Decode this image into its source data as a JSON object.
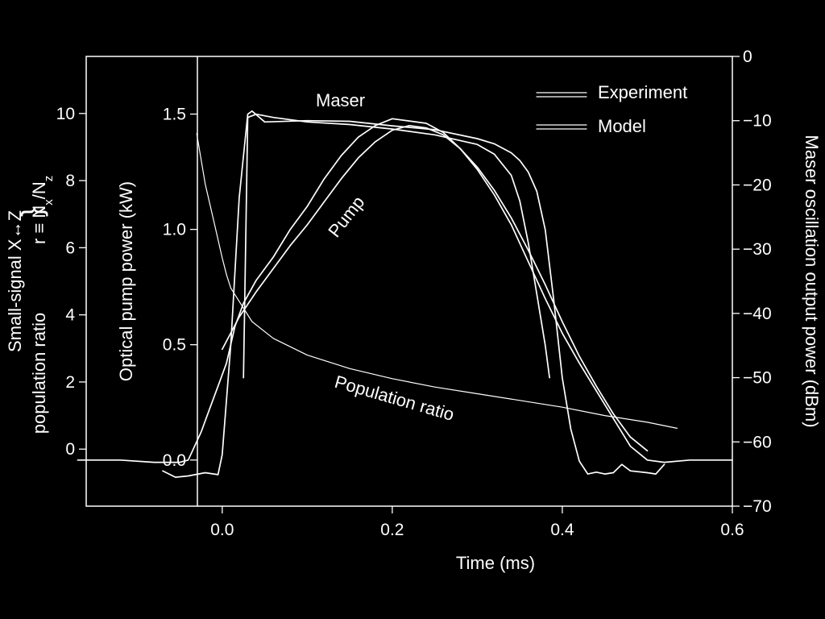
{
  "chart_data": {
    "type": "line",
    "x_axis": {
      "label": "Time (ms)",
      "range": [
        -0.16,
        0.6
      ],
      "ticks": [
        0.0,
        0.2,
        0.4,
        0.6
      ],
      "tick_labels": [
        "0.0",
        "0.2",
        "0.4",
        "0.6"
      ]
    },
    "y_axes": {
      "population_ratio": {
        "label_lines": [
          "Small-signal X↔Z",
          "population ratio"
        ],
        "brace_label": "r ≡ N",
        "brace_sub_x": "x",
        "brace_slash": "/N",
        "brace_sub_z": "z",
        "range": [
          -1.7,
          11.7
        ],
        "ticks": [
          0,
          2,
          4,
          6,
          8,
          10
        ],
        "tick_labels": [
          "0",
          "2",
          "4",
          "6",
          "8",
          "10"
        ]
      },
      "pump_power": {
        "label": "Optical pump power (kW)",
        "range": [
          -0.2,
          1.75
        ],
        "ticks": [
          0.0,
          0.5,
          1.0,
          1.5
        ],
        "tick_labels": [
          "0.0",
          "0.5",
          "1.0",
          "1.5"
        ]
      },
      "maser_power": {
        "label": "Maser oscillation output power (dBm)",
        "range": [
          -70,
          0
        ],
        "ticks": [
          0,
          -10,
          -20,
          -30,
          -40,
          -50,
          -60,
          -70
        ],
        "tick_labels": [
          "0",
          "−10",
          "−20",
          "−30",
          "−40",
          "−50",
          "−60",
          "−70"
        ]
      }
    },
    "legend": {
      "placement": "top-right",
      "entries": [
        "Experiment",
        "Model"
      ]
    },
    "annotations": [
      "Maser",
      "Pump",
      "Population ratio"
    ],
    "series": [
      {
        "name": "Pump",
        "kind": "experiment",
        "axis": "pump_power",
        "x": [
          -0.17,
          -0.12,
          -0.08,
          -0.05,
          -0.04,
          -0.025,
          -0.015,
          -0.005,
          0.005,
          0.015,
          0.025,
          0.04,
          0.06,
          0.08,
          0.1,
          0.12,
          0.14,
          0.16,
          0.18,
          0.2,
          0.22,
          0.24,
          0.26,
          0.28,
          0.3,
          0.32,
          0.34,
          0.36,
          0.38,
          0.4,
          0.42,
          0.44,
          0.46,
          0.48,
          0.5,
          0.52,
          0.55,
          0.58,
          0.6
        ],
        "y": [
          0.0,
          0.0,
          -0.01,
          -0.01,
          0.0,
          0.12,
          0.22,
          0.32,
          0.42,
          0.58,
          0.68,
          0.78,
          0.88,
          1.0,
          1.1,
          1.22,
          1.32,
          1.4,
          1.45,
          1.48,
          1.47,
          1.46,
          1.42,
          1.35,
          1.26,
          1.15,
          1.02,
          0.86,
          0.7,
          0.55,
          0.42,
          0.3,
          0.18,
          0.06,
          0.0,
          -0.01,
          0.0,
          0.0,
          0.0
        ]
      },
      {
        "name": "Pump",
        "kind": "model",
        "axis": "pump_power",
        "x": [
          0.0,
          0.02,
          0.04,
          0.06,
          0.08,
          0.1,
          0.12,
          0.14,
          0.16,
          0.18,
          0.2,
          0.22,
          0.24,
          0.26,
          0.28,
          0.3,
          0.32,
          0.34,
          0.36,
          0.38,
          0.4,
          0.42,
          0.44,
          0.46,
          0.48,
          0.5
        ],
        "y": [
          0.48,
          0.62,
          0.73,
          0.83,
          0.93,
          1.02,
          1.12,
          1.22,
          1.31,
          1.38,
          1.43,
          1.45,
          1.44,
          1.41,
          1.35,
          1.27,
          1.17,
          1.05,
          0.91,
          0.76,
          0.6,
          0.45,
          0.32,
          0.2,
          0.1,
          0.04
        ]
      },
      {
        "name": "Maser",
        "kind": "experiment",
        "axis": "maser_power",
        "x": [
          -0.07,
          -0.055,
          -0.04,
          -0.02,
          -0.005,
          0.0,
          0.01,
          0.02,
          0.03,
          0.035,
          0.05,
          0.1,
          0.15,
          0.2,
          0.25,
          0.3,
          0.32,
          0.34,
          0.35,
          0.36,
          0.37,
          0.38,
          0.39,
          0.4,
          0.41,
          0.42,
          0.43,
          0.44,
          0.45,
          0.46,
          0.47,
          0.48,
          0.5,
          0.51,
          0.52
        ],
        "y": [
          -64.5,
          -65.5,
          -65.3,
          -64.8,
          -65.1,
          -62.0,
          -45.0,
          -22.0,
          -9.0,
          -8.5,
          -10.2,
          -10.0,
          -10.1,
          -10.8,
          -11.4,
          -12.8,
          -13.6,
          -15.0,
          -16.2,
          -18.0,
          -21.0,
          -27.0,
          -38.0,
          -50.0,
          -58.0,
          -63.0,
          -65.0,
          -64.7,
          -65.0,
          -64.8,
          -63.5,
          -64.5,
          -64.8,
          -65.0,
          -63.5
        ]
      },
      {
        "name": "Maser",
        "kind": "model",
        "axis": "maser_power",
        "x": [
          0.025,
          0.03,
          0.04,
          0.06,
          0.1,
          0.15,
          0.2,
          0.25,
          0.3,
          0.32,
          0.34,
          0.35,
          0.36,
          0.37,
          0.38,
          0.385
        ],
        "y": [
          -50.0,
          -9.5,
          -9.0,
          -9.5,
          -10.2,
          -10.6,
          -11.3,
          -12.2,
          -13.7,
          -15.2,
          -18.5,
          -22.5,
          -29.0,
          -37.0,
          -45.0,
          -50.0
        ]
      },
      {
        "name": "Population ratio",
        "kind": "model",
        "axis": "population_ratio",
        "x": [
          -0.03,
          -0.02,
          -0.01,
          0.0,
          0.005,
          0.01,
          0.035,
          0.06,
          0.1,
          0.15,
          0.2,
          0.25,
          0.3,
          0.35,
          0.4,
          0.45,
          0.5,
          0.535
        ],
        "y": [
          9.4,
          7.9,
          6.8,
          5.7,
          5.2,
          4.8,
          3.8,
          3.3,
          2.8,
          2.4,
          2.1,
          1.85,
          1.65,
          1.45,
          1.25,
          1.0,
          0.8,
          0.62
        ]
      }
    ]
  }
}
